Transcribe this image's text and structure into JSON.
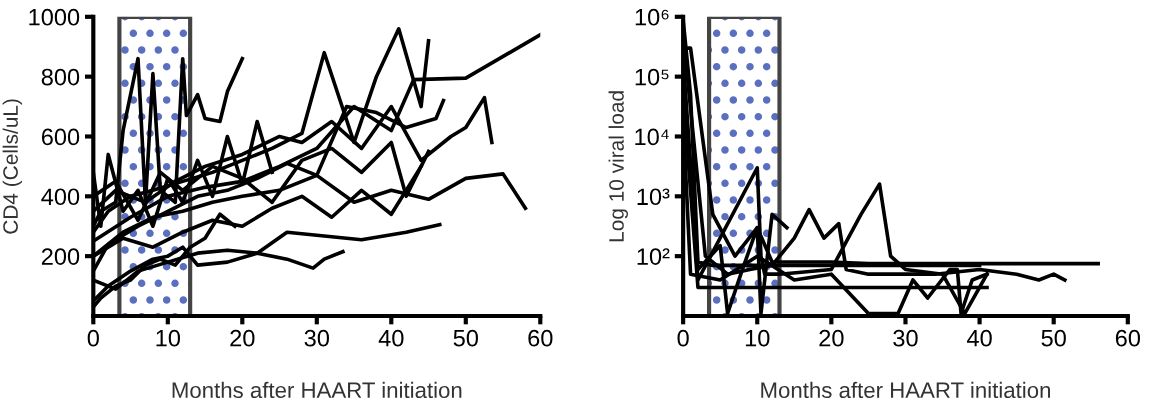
{
  "chart_data": [
    {
      "type": "line",
      "xlabel": "Months after HAART initiation",
      "ylabel": "CD4 (Cells/uL)",
      "xlim": [
        0,
        60
      ],
      "xticks": [
        0,
        10,
        20,
        30,
        40,
        50,
        60
      ],
      "ylim": [
        0,
        1000
      ],
      "yticks": [
        200,
        400,
        600,
        800,
        1000
      ],
      "grid": false,
      "legend": false,
      "marker": "none",
      "line_style": "solid",
      "bands": [
        {
          "axis": "x",
          "from": 3.5,
          "to": 13,
          "color": "#5a6fbf"
        }
      ],
      "series": [
        {
          "color": "#000000",
          "x": [
            0,
            1,
            3,
            4,
            6,
            7,
            8,
            9,
            11,
            12,
            12.5,
            14,
            15,
            17,
            18,
            20
          ],
          "values": [
            300,
            350,
            380,
            620,
            860,
            380,
            810,
            420,
            380,
            860,
            670,
            740,
            660,
            650,
            750,
            860
          ]
        },
        {
          "color": "#000000",
          "x": [
            0,
            5,
            10,
            15,
            20,
            25,
            30,
            35,
            40,
            43,
            50,
            60
          ],
          "values": [
            250,
            330,
            400,
            430,
            450,
            500,
            560,
            700,
            620,
            790,
            795,
            940
          ]
        },
        {
          "color": "#000000",
          "x": [
            0,
            2,
            5,
            8,
            10,
            12,
            14,
            18,
            22,
            26,
            30,
            36,
            42,
            46.5
          ],
          "values": [
            50,
            100,
            150,
            190,
            200,
            230,
            170,
            180,
            210,
            280,
            270,
            255,
            280,
            305
          ]
        },
        {
          "color": "#000000",
          "x": [
            0,
            3,
            6,
            10,
            14,
            18,
            22,
            26,
            29.5,
            31,
            33.5
          ],
          "values": [
            120,
            90,
            150,
            180,
            210,
            220,
            210,
            190,
            160,
            190,
            215
          ]
        },
        {
          "color": "#000000",
          "x": [
            0,
            4,
            8,
            12,
            16,
            20,
            25,
            30,
            35,
            40,
            45,
            50,
            55,
            58
          ],
          "values": [
            200,
            280,
            330,
            350,
            380,
            400,
            420,
            470,
            380,
            420,
            390,
            460,
            475,
            360
          ]
        },
        {
          "color": "#000000",
          "x": [
            0,
            2,
            5,
            8,
            12,
            16,
            20,
            24,
            28,
            31,
            35,
            38,
            41,
            44,
            45
          ],
          "values": [
            280,
            350,
            400,
            420,
            450,
            480,
            520,
            560,
            610,
            880,
            580,
            800,
            960,
            700,
            920
          ]
        },
        {
          "color": "#000000",
          "x": [
            0,
            3,
            7,
            11,
            15,
            20,
            25,
            28,
            32,
            36,
            40,
            44,
            48,
            50,
            52.5,
            53.5
          ],
          "values": [
            350,
            420,
            380,
            450,
            500,
            540,
            600,
            580,
            650,
            560,
            700,
            520,
            600,
            630,
            730,
            580
          ]
        },
        {
          "color": "#000000",
          "x": [
            0,
            2,
            6,
            10,
            14,
            18,
            22,
            26,
            30,
            34,
            38,
            42,
            46,
            47
          ],
          "values": [
            150,
            240,
            300,
            350,
            400,
            420,
            460,
            510,
            470,
            700,
            680,
            630,
            660,
            720
          ]
        },
        {
          "color": "#000000",
          "x": [
            0,
            3,
            6,
            9,
            12,
            16,
            20,
            24,
            28,
            32,
            36,
            40,
            42,
            45
          ],
          "values": [
            400,
            450,
            320,
            480,
            420,
            500,
            460,
            380,
            520,
            560,
            480,
            580,
            400,
            550
          ]
        },
        {
          "color": "#000000",
          "x": [
            0,
            4,
            8,
            12,
            16,
            20,
            24,
            28,
            32,
            36,
            40,
            44
          ],
          "values": [
            200,
            260,
            230,
            280,
            320,
            300,
            360,
            400,
            330,
            420,
            340,
            500
          ]
        },
        {
          "color": "#000000",
          "x": [
            0,
            1,
            2,
            4,
            6,
            8,
            10,
            12,
            14,
            16,
            18,
            20,
            22,
            24
          ],
          "values": [
            480,
            300,
            540,
            350,
            420,
            300,
            460,
            380,
            520,
            400,
            600,
            440,
            650,
            480
          ]
        },
        {
          "color": "#000000",
          "x": [
            0,
            1,
            3,
            5,
            7,
            9,
            11,
            13,
            15,
            17,
            19
          ],
          "values": [
            30,
            60,
            100,
            120,
            170,
            190,
            170,
            230,
            260,
            340,
            300
          ]
        }
      ]
    },
    {
      "type": "line",
      "xlabel": "Months after HAART initiation",
      "ylabel": "Log 10 viral load",
      "log": "y",
      "xlim": [
        0,
        60
      ],
      "xticks": [
        0,
        10,
        20,
        30,
        40,
        50,
        60
      ],
      "ylim": [
        10,
        1000000
      ],
      "yticks": [
        {
          "value": 100,
          "label": "10²"
        },
        {
          "value": 1000,
          "label": "10³"
        },
        {
          "value": 10000,
          "label": "10⁴"
        },
        {
          "value": 100000,
          "label": "10⁵"
        },
        {
          "value": 1000000,
          "label": "10⁶"
        }
      ],
      "grid": false,
      "legend": false,
      "marker": "none",
      "line_style": "solid",
      "bands": [
        {
          "axis": "x",
          "from": 3.5,
          "to": 13,
          "color": "#5a6fbf"
        }
      ],
      "series": [
        {
          "color": "#000000",
          "x": [
            0,
            1,
            2,
            4,
            8,
            12,
            16,
            20,
            24,
            28,
            32,
            36,
            40
          ],
          "values": [
            900000,
            50000,
            80,
            70,
            70,
            70,
            70,
            70,
            70,
            70,
            70,
            70,
            70
          ]
        },
        {
          "color": "#000000",
          "x": [
            0,
            1,
            4,
            7,
            10,
            12,
            15,
            20,
            25,
            30,
            40,
            45,
            50,
            56
          ],
          "values": [
            300000,
            300000,
            500,
            100,
            300,
            80,
            80,
            80,
            75,
            75,
            75,
            75,
            75,
            75
          ]
        },
        {
          "color": "#000000",
          "x": [
            0,
            2,
            5,
            6,
            8,
            10,
            10.5,
            12,
            14
          ],
          "values": [
            200000,
            60,
            150,
            11,
            60,
            300,
            11,
            500,
            300
          ]
        },
        {
          "color": "#000000",
          "x": [
            0,
            2,
            10,
            10.5,
            11,
            13,
            20,
            24,
            26.5,
            28,
            30,
            35,
            38,
            41
          ],
          "values": [
            100000,
            40,
            3000,
            100,
            50,
            50,
            60,
            500,
            1600,
            100,
            60,
            50,
            11,
            50
          ]
        },
        {
          "color": "#000000",
          "x": [
            0,
            3,
            6,
            9,
            12,
            15,
            17,
            19,
            21,
            22,
            25,
            28,
            31,
            34,
            40,
            45,
            48,
            50,
            51.5
          ],
          "values": [
            500000,
            100,
            50,
            60,
            70,
            200,
            600,
            200,
            350,
            60,
            50,
            50,
            50,
            50,
            60,
            50,
            40,
            50,
            40
          ]
        },
        {
          "color": "#000000",
          "x": [
            0,
            2,
            16,
            41
          ],
          "values": [
            50000,
            30,
            30,
            30
          ]
        },
        {
          "color": "#000000",
          "x": [
            0,
            1,
            5,
            10,
            15,
            20,
            25,
            29,
            31,
            33,
            36,
            37,
            37.5,
            39,
            41
          ],
          "values": [
            20000,
            50,
            40,
            100,
            40,
            50,
            11,
            11,
            40,
            20,
            60,
            60,
            11,
            40,
            50
          ]
        }
      ]
    }
  ]
}
